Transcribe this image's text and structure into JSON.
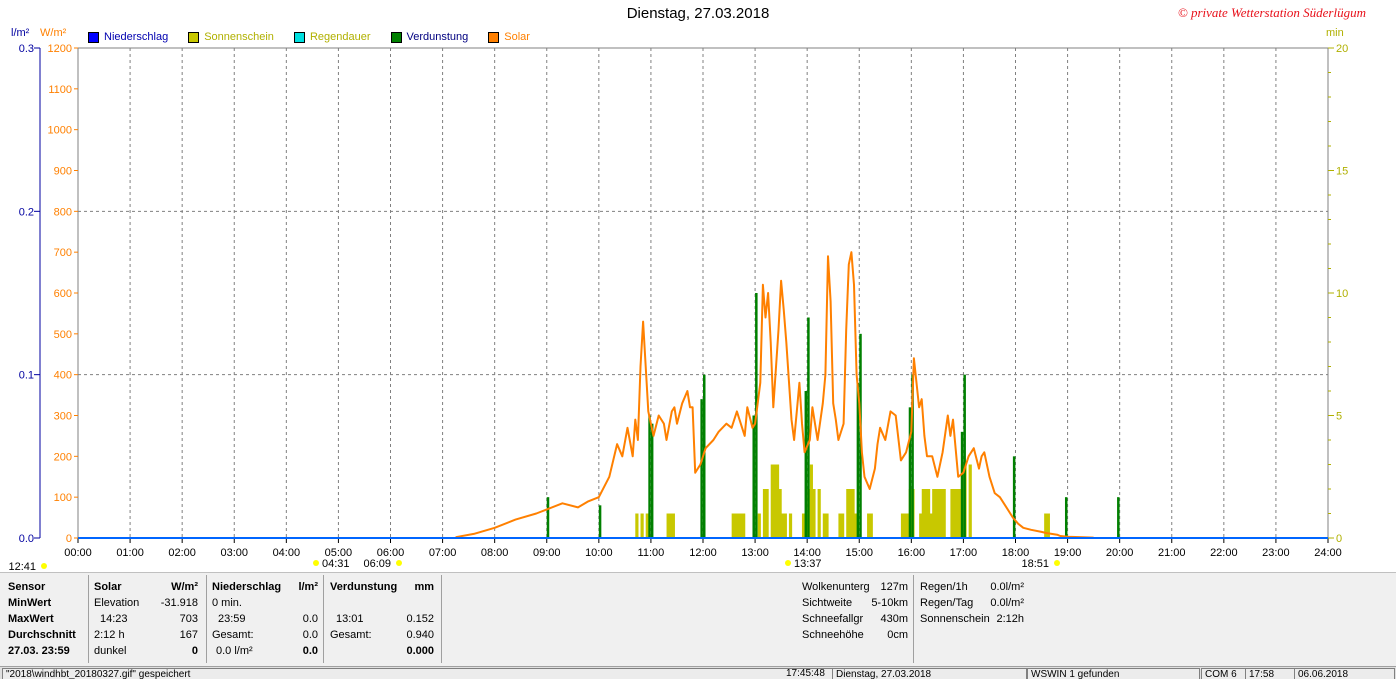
{
  "title": "Dienstag, 27.03.2018",
  "watermark": "© private Wetterstation Süderlügum",
  "units": {
    "left1": "l/m²",
    "left2": "W/m²",
    "right": "min"
  },
  "legend": [
    {
      "label": "Niederschlag",
      "color": "#0000ff",
      "text_color": "#0000b0"
    },
    {
      "label": "Sonnenschein",
      "color": "#c8c800",
      "text_color": "#b0b000"
    },
    {
      "label": "Regendauer",
      "color": "#00e0e0",
      "text_color": "#b0b000"
    },
    {
      "label": "Verdunstung",
      "color": "#008000",
      "text_color": "#000080"
    },
    {
      "label": "Solar",
      "color": "#ff8000",
      "text_color": "#ff8000"
    }
  ],
  "chart_data": {
    "type": "line",
    "title": "Dienstag, 27.03.2018",
    "x_range_hours": [
      0,
      24
    ],
    "x_tick_labels": [
      "00:00",
      "01:00",
      "02:00",
      "03:00",
      "04:00",
      "05:00",
      "06:00",
      "07:00",
      "08:00",
      "09:00",
      "10:00",
      "11:00",
      "12:00",
      "13:00",
      "14:00",
      "15:00",
      "16:00",
      "17:00",
      "18:00",
      "19:00",
      "20:00",
      "21:00",
      "22:00",
      "23:00",
      "24:00"
    ],
    "y_left_precip": {
      "unit": "l/m²",
      "range": [
        0,
        0.3
      ],
      "ticks": [
        "0.0",
        "0.1",
        "0.2",
        "0.3"
      ]
    },
    "y_left_solar": {
      "unit": "W/m²",
      "range": [
        0,
        1200
      ],
      "ticks": [
        "0",
        "100",
        "200",
        "300",
        "400",
        "500",
        "600",
        "700",
        "800",
        "900",
        "1000",
        "1100",
        "1200"
      ]
    },
    "y_right": {
      "unit": "min",
      "range": [
        0,
        20
      ],
      "ticks": [
        "0",
        "5",
        "10",
        "15",
        "20"
      ]
    },
    "grid": true,
    "series": [
      {
        "name": "Solar",
        "color": "#ff8000",
        "points": [
          [
            7.25,
            2
          ],
          [
            7.6,
            10
          ],
          [
            8.0,
            25
          ],
          [
            8.4,
            45
          ],
          [
            8.8,
            60
          ],
          [
            9.0,
            70
          ],
          [
            9.3,
            85
          ],
          [
            9.6,
            75
          ],
          [
            9.8,
            90
          ],
          [
            10.0,
            100
          ],
          [
            10.2,
            150
          ],
          [
            10.35,
            230
          ],
          [
            10.45,
            200
          ],
          [
            10.55,
            270
          ],
          [
            10.65,
            200
          ],
          [
            10.7,
            290
          ],
          [
            10.75,
            240
          ],
          [
            10.8,
            420
          ],
          [
            10.85,
            530
          ],
          [
            10.9,
            420
          ],
          [
            10.95,
            310
          ],
          [
            11.0,
            280
          ],
          [
            11.05,
            250
          ],
          [
            11.15,
            300
          ],
          [
            11.25,
            280
          ],
          [
            11.3,
            240
          ],
          [
            11.4,
            310
          ],
          [
            11.45,
            320
          ],
          [
            11.5,
            280
          ],
          [
            11.6,
            330
          ],
          [
            11.7,
            360
          ],
          [
            11.75,
            320
          ],
          [
            11.8,
            320
          ],
          [
            11.85,
            160
          ],
          [
            11.95,
            180
          ],
          [
            12.05,
            220
          ],
          [
            12.2,
            240
          ],
          [
            12.3,
            260
          ],
          [
            12.45,
            280
          ],
          [
            12.55,
            270
          ],
          [
            12.65,
            310
          ],
          [
            12.8,
            250
          ],
          [
            12.85,
            320
          ],
          [
            12.95,
            270
          ],
          [
            13.0,
            280
          ],
          [
            13.1,
            380
          ],
          [
            13.15,
            620
          ],
          [
            13.2,
            540
          ],
          [
            13.25,
            600
          ],
          [
            13.3,
            480
          ],
          [
            13.35,
            320
          ],
          [
            13.45,
            510
          ],
          [
            13.5,
            630
          ],
          [
            13.55,
            560
          ],
          [
            13.6,
            480
          ],
          [
            13.7,
            290
          ],
          [
            13.75,
            240
          ],
          [
            13.8,
            310
          ],
          [
            13.85,
            380
          ],
          [
            13.9,
            280
          ],
          [
            13.95,
            210
          ],
          [
            14.05,
            240
          ],
          [
            14.1,
            320
          ],
          [
            14.2,
            240
          ],
          [
            14.3,
            330
          ],
          [
            14.35,
            400
          ],
          [
            14.4,
            690
          ],
          [
            14.45,
            580
          ],
          [
            14.5,
            330
          ],
          [
            14.55,
            290
          ],
          [
            14.6,
            240
          ],
          [
            14.7,
            280
          ],
          [
            14.75,
            510
          ],
          [
            14.8,
            670
          ],
          [
            14.85,
            700
          ],
          [
            14.9,
            620
          ],
          [
            14.95,
            400
          ],
          [
            15.0,
            330
          ],
          [
            15.05,
            210
          ],
          [
            15.1,
            150
          ],
          [
            15.2,
            120
          ],
          [
            15.3,
            170
          ],
          [
            15.35,
            230
          ],
          [
            15.4,
            270
          ],
          [
            15.5,
            240
          ],
          [
            15.6,
            310
          ],
          [
            15.7,
            300
          ],
          [
            15.8,
            190
          ],
          [
            15.9,
            210
          ],
          [
            16.0,
            260
          ],
          [
            16.05,
            440
          ],
          [
            16.1,
            380
          ],
          [
            16.15,
            320
          ],
          [
            16.2,
            340
          ],
          [
            16.25,
            250
          ],
          [
            16.3,
            200
          ],
          [
            16.4,
            200
          ],
          [
            16.5,
            150
          ],
          [
            16.6,
            210
          ],
          [
            16.7,
            300
          ],
          [
            16.75,
            250
          ],
          [
            16.8,
            290
          ],
          [
            16.9,
            150
          ],
          [
            17.0,
            160
          ],
          [
            17.1,
            200
          ],
          [
            17.2,
            220
          ],
          [
            17.3,
            170
          ],
          [
            17.35,
            200
          ],
          [
            17.4,
            210
          ],
          [
            17.5,
            150
          ],
          [
            17.6,
            110
          ],
          [
            17.7,
            100
          ],
          [
            17.8,
            80
          ],
          [
            17.95,
            50
          ],
          [
            18.05,
            35
          ],
          [
            18.15,
            25
          ],
          [
            18.3,
            20
          ],
          [
            18.5,
            15
          ],
          [
            18.6,
            12
          ],
          [
            18.8,
            8
          ],
          [
            18.86,
            5
          ],
          [
            19.0,
            3
          ],
          [
            19.3,
            2
          ],
          [
            19.5,
            1
          ]
        ]
      },
      {
        "name": "Verdunstung",
        "color": "#008000",
        "unit": "l/m²",
        "bars": [
          [
            9.0,
            0.025
          ],
          [
            10.0,
            0.02
          ],
          [
            10.95,
            0.075
          ],
          [
            11.0,
            0.07
          ],
          [
            11.95,
            0.085
          ],
          [
            12.0,
            0.1
          ],
          [
            12.95,
            0.075
          ],
          [
            13.0,
            0.15
          ],
          [
            13.95,
            0.09
          ],
          [
            14.0,
            0.135
          ],
          [
            14.95,
            0.095
          ],
          [
            15.0,
            0.125
          ],
          [
            15.95,
            0.08
          ],
          [
            16.0,
            0.1
          ],
          [
            16.95,
            0.065
          ],
          [
            17.0,
            0.1
          ],
          [
            17.95,
            0.05
          ],
          [
            18.95,
            0.025
          ],
          [
            19.95,
            0.025
          ]
        ]
      },
      {
        "name": "Sonnenschein",
        "color": "#c8c800",
        "unit": "min",
        "bars": [
          [
            10.7,
            1
          ],
          [
            10.8,
            1
          ],
          [
            10.9,
            1
          ],
          [
            11.3,
            1
          ],
          [
            11.35,
            1
          ],
          [
            11.4,
            1
          ],
          [
            12.55,
            1
          ],
          [
            12.6,
            1
          ],
          [
            12.65,
            1
          ],
          [
            12.7,
            1
          ],
          [
            12.75,
            1
          ],
          [
            13.05,
            1
          ],
          [
            13.15,
            2
          ],
          [
            13.2,
            2
          ],
          [
            13.3,
            3
          ],
          [
            13.35,
            3
          ],
          [
            13.4,
            3
          ],
          [
            13.45,
            2
          ],
          [
            13.5,
            1
          ],
          [
            13.55,
            1
          ],
          [
            13.65,
            1
          ],
          [
            13.9,
            1
          ],
          [
            13.95,
            1
          ],
          [
            14.0,
            2
          ],
          [
            14.05,
            3
          ],
          [
            14.1,
            2
          ],
          [
            14.2,
            2
          ],
          [
            14.3,
            1
          ],
          [
            14.35,
            1
          ],
          [
            14.6,
            1
          ],
          [
            14.65,
            1
          ],
          [
            14.75,
            2
          ],
          [
            14.8,
            2
          ],
          [
            14.85,
            2
          ],
          [
            14.9,
            1
          ],
          [
            15.15,
            1
          ],
          [
            15.2,
            1
          ],
          [
            15.8,
            1
          ],
          [
            15.85,
            1
          ],
          [
            15.9,
            1
          ],
          [
            15.95,
            2
          ],
          [
            16.0,
            2
          ],
          [
            16.15,
            1
          ],
          [
            16.2,
            2
          ],
          [
            16.25,
            2
          ],
          [
            16.3,
            2
          ],
          [
            16.35,
            1
          ],
          [
            16.4,
            2
          ],
          [
            16.45,
            2
          ],
          [
            16.5,
            2
          ],
          [
            16.55,
            2
          ],
          [
            16.6,
            2
          ],
          [
            16.75,
            2
          ],
          [
            16.8,
            2
          ],
          [
            16.85,
            2
          ],
          [
            16.9,
            2
          ],
          [
            16.95,
            3
          ],
          [
            17.0,
            3
          ],
          [
            17.1,
            3
          ],
          [
            18.55,
            1
          ],
          [
            18.6,
            1
          ]
        ]
      }
    ],
    "markers_below": [
      {
        "label": "12:41",
        "color": "#ffff00"
      },
      {
        "label": "04:31",
        "color": "#ffff00"
      },
      {
        "label": "06:09",
        "color": "#ffff00"
      },
      {
        "label": "13:37",
        "color": "#ffff00"
      },
      {
        "label": "18:51",
        "color": "#ffff00"
      }
    ]
  },
  "stats": {
    "sensor": {
      "header": "Sensor",
      "rows": [
        "MinWert",
        "MaxWert",
        "Durchschnitt",
        "27.03.  23:59"
      ]
    },
    "solar": {
      "header": "Solar",
      "unit": "W/m²",
      "rows": [
        {
          "a": "Elevation",
          "b": "-31.918"
        },
        {
          "a": "14:23",
          "b": "703"
        },
        {
          "a": "2:12 h",
          "b": "167"
        },
        {
          "a": "dunkel",
          "b": "0"
        }
      ]
    },
    "precip": {
      "header": "Niederschlag",
      "unit": "l/m²",
      "rows": [
        {
          "a": "0 min.",
          "b": ""
        },
        {
          "a": "23:59",
          "b": "0.0"
        },
        {
          "a": "Gesamt:",
          "b": "0.0"
        },
        {
          "a": "0.0 l/m²",
          "b": "0.0"
        }
      ]
    },
    "evap": {
      "header": "Verdunstung",
      "unit": "mm",
      "rows": [
        {
          "a": "",
          "b": ""
        },
        {
          "a": "13:01",
          "b": "0.152"
        },
        {
          "a": "Gesamt:",
          "b": "0.940"
        },
        {
          "a": "",
          "b": "0.000"
        }
      ]
    },
    "weather": [
      {
        "k": "Wolkenunterg",
        "v": "127m"
      },
      {
        "k": "Sichtweite",
        "v": "5-10km"
      },
      {
        "k": "Schneefallgr",
        "v": "430m"
      },
      {
        "k": "Schneehöhe",
        "v": "0cm"
      }
    ],
    "rain": [
      {
        "k": "Regen/1h",
        "v": "0.0l/m²"
      },
      {
        "k": "Regen/Tag",
        "v": "0.0l/m²"
      },
      {
        "k": "Sonnenschein",
        "v": "2:12h"
      }
    ]
  },
  "statusbar": [
    "\"2018\\windhbt_20180327.gif\" gespeichert",
    "17:45:48",
    "Dienstag, 27.03.2018",
    "WSWIN 1 gefunden",
    "COM 6",
    "17:58",
    "06.06.2018"
  ]
}
